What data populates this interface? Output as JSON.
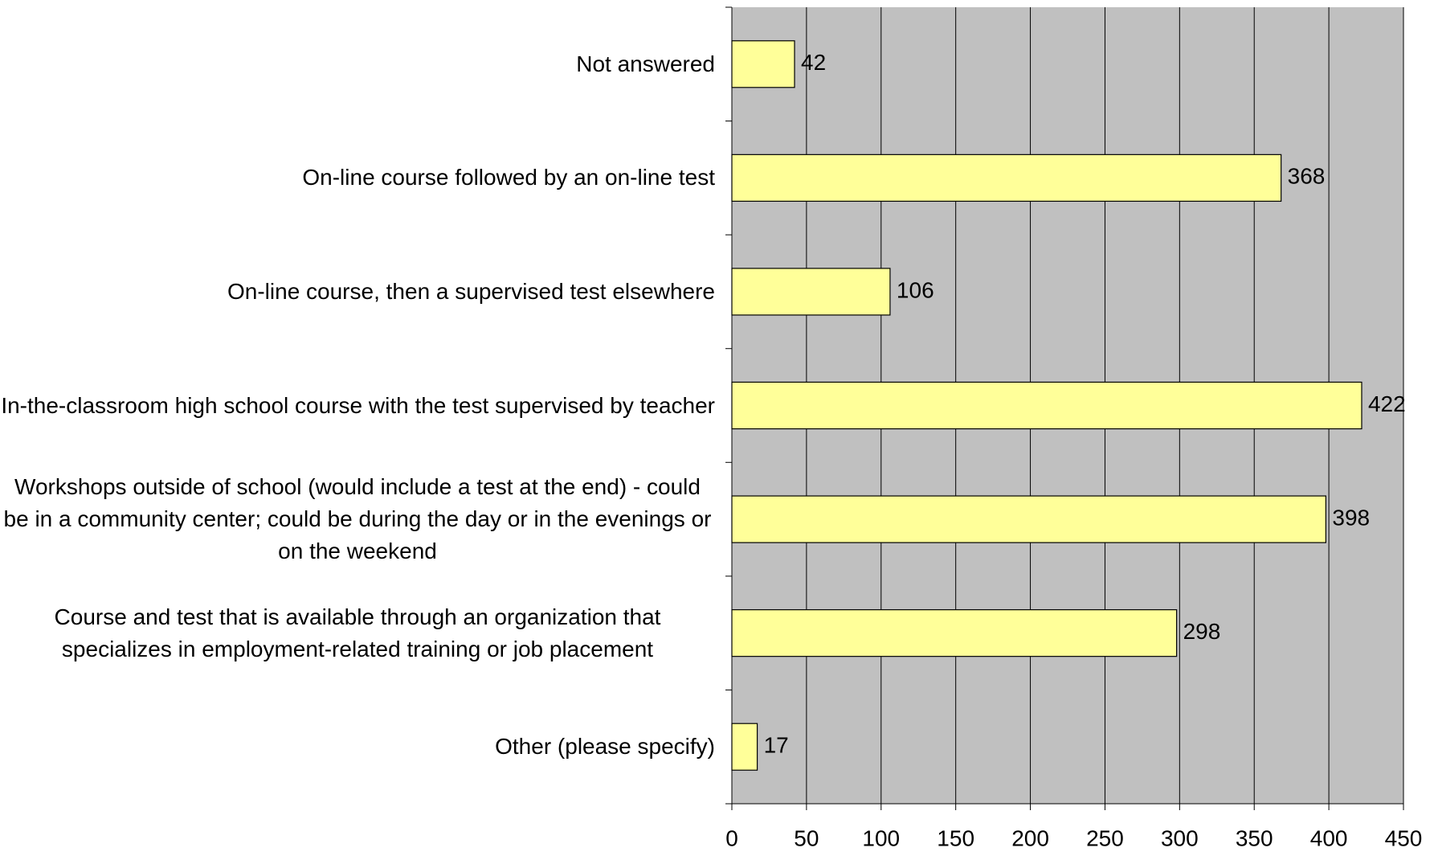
{
  "chart_data": {
    "type": "bar",
    "orientation": "horizontal",
    "categories": [
      "Not answered",
      "On-line course followed by an on-line test",
      "On-line course, then a supervised test elsewhere",
      "In-the-classroom high school course with the test supervised by teacher",
      "Workshops outside of school (would include a test at the end) - could be in a community center; could be during the day or in the evenings or on the weekend",
      "Course and test that is available through an organization that specializes in employment-related training or job placement",
      "Other (please specify)"
    ],
    "values": [
      42,
      368,
      106,
      422,
      398,
      298,
      17
    ],
    "color": "#ffff99",
    "plot_background": "#c0c0c0",
    "xlim": [
      0,
      450
    ],
    "xticks": [
      0,
      50,
      100,
      150,
      200,
      250,
      300,
      350,
      400,
      450
    ],
    "grid": true
  }
}
